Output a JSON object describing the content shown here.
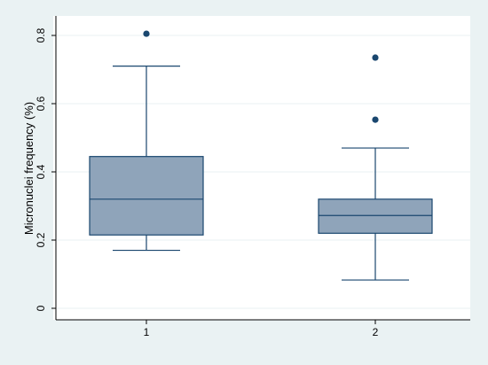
{
  "chart_data": {
    "type": "box",
    "title": "",
    "xlabel": "",
    "ylabel": "Micronuclei frequency (%)",
    "ylim": [
      -0.03,
      0.87
    ],
    "yticks": [
      0,
      0.2,
      0.4,
      0.6,
      0.8
    ],
    "ytick_labels": [
      "0",
      "0.2",
      "0.4",
      "0.6",
      "0.8"
    ],
    "grid": true,
    "categories": [
      "1",
      "2"
    ],
    "boxes": [
      {
        "category": "1",
        "whisker_low": 0.17,
        "q1": 0.215,
        "median": 0.32,
        "q3": 0.445,
        "whisker_high": 0.71,
        "outliers": [
          0.805
        ]
      },
      {
        "category": "2",
        "whisker_low": 0.083,
        "q1": 0.22,
        "median": 0.272,
        "q3": 0.32,
        "whisker_high": 0.47,
        "outliers": [
          0.553,
          0.735
        ]
      }
    ],
    "colors": {
      "background": "#eaf2f3",
      "plot_background": "#ffffff",
      "box_fill": "#8fa4ba",
      "box_stroke": "#1a476f",
      "outlier": "#1a476f",
      "grid": "#eaf2f3"
    }
  }
}
